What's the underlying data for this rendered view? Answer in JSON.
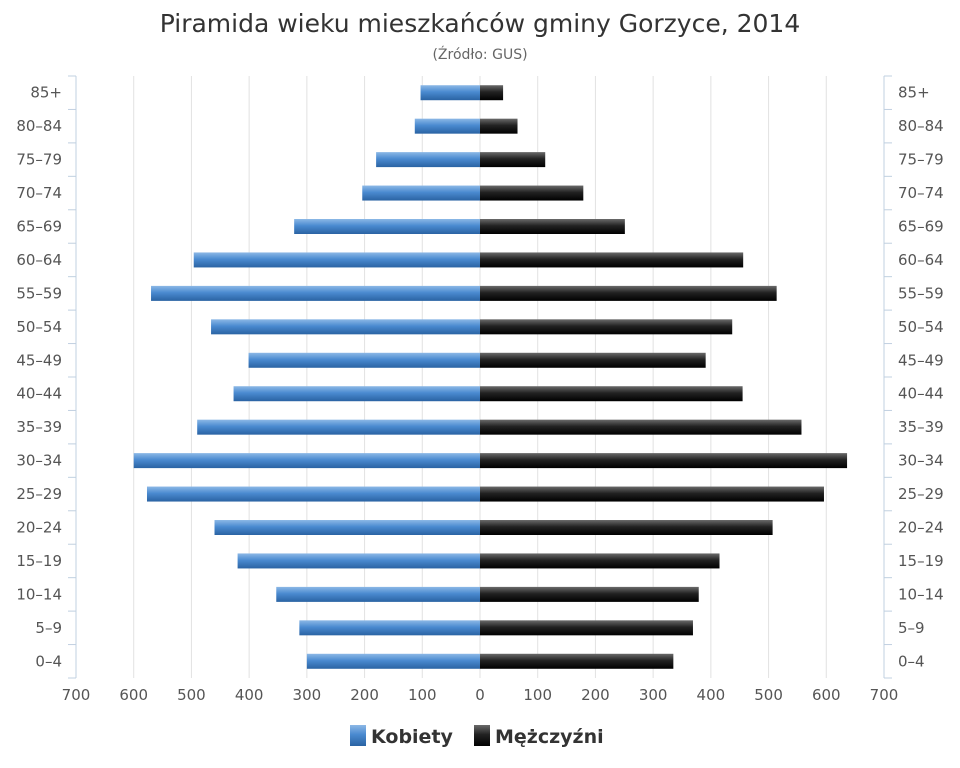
{
  "chart_data": {
    "type": "bar",
    "orientation": "horizontal-population-pyramid",
    "title": "Piramida wieku mieszkańców gminy Gorzyce, 2014",
    "subtitle": "(Źródło: GUS)",
    "categories": [
      "0–4",
      "5–9",
      "10–14",
      "15–19",
      "20–24",
      "25–29",
      "30–34",
      "35–39",
      "40–44",
      "45–49",
      "50–54",
      "55–59",
      "60–64",
      "65–69",
      "70–74",
      "75–79",
      "80–84",
      "85+"
    ],
    "x_ticks": [
      "700",
      "600",
      "500",
      "400",
      "300",
      "200",
      "100",
      "0",
      "100",
      "200",
      "300",
      "400",
      "500",
      "600",
      "700"
    ],
    "xlim": [
      -700,
      700
    ],
    "grid": true,
    "legend_placement": "bottom",
    "series": [
      {
        "name": "Kobiety",
        "color": "#3d7bbf",
        "side": "left",
        "values": [
          300,
          313,
          353,
          420,
          460,
          577,
          600,
          490,
          427,
          401,
          466,
          570,
          496,
          322,
          204,
          180,
          113,
          103
        ]
      },
      {
        "name": "Mężczyźni",
        "color": "#1a1a1a",
        "side": "right",
        "values": [
          335,
          369,
          379,
          415,
          507,
          596,
          636,
          557,
          455,
          391,
          437,
          514,
          456,
          251,
          179,
          113,
          65,
          40
        ]
      }
    ]
  }
}
